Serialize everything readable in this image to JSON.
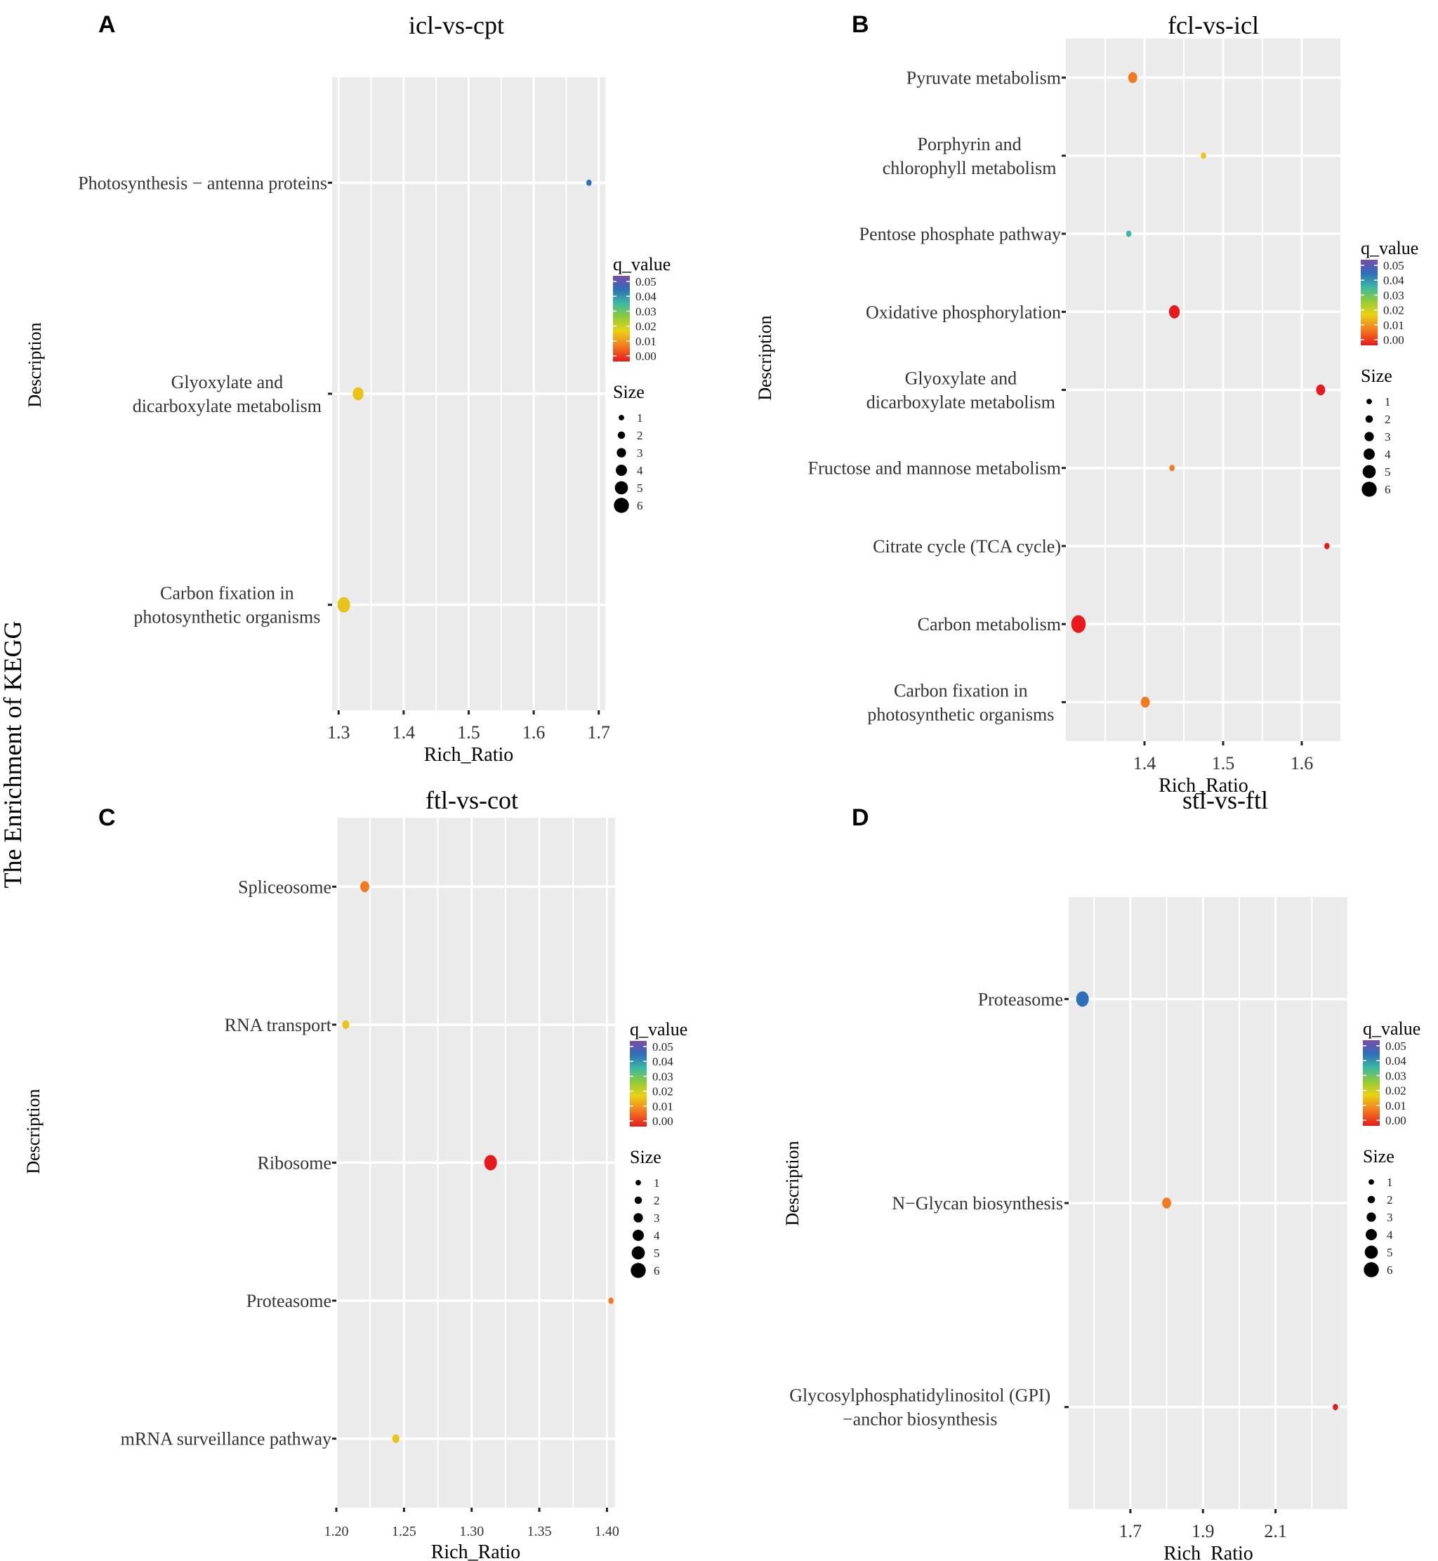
{
  "figure": {
    "global_ylabel": "The Enrichment of KEGG"
  },
  "chart_data": [
    {
      "type": "scatter",
      "panel": "A",
      "title": "icl-vs-cpt",
      "xlabel": "Rich_Ratio",
      "ylabel": "Description",
      "xlim": [
        1.29,
        1.71
      ],
      "xticks": [
        1.3,
        1.4,
        1.5,
        1.6,
        1.7
      ],
      "xtick_labels": [
        "1.3",
        "1.4",
        "1.5",
        "1.6",
        "1.7"
      ],
      "categories": [
        "Photosynthesis − antenna proteins",
        "Glyoxylate and\ndicarboxylate metabolism",
        "Carbon fixation in\nphotosynthetic organisms"
      ],
      "points": [
        {
          "category": 0,
          "x": 1.685,
          "q": 0.038,
          "size": 1
        },
        {
          "category": 1,
          "x": 1.33,
          "q": 0.016,
          "size": 4
        },
        {
          "category": 2,
          "x": 1.308,
          "q": 0.016,
          "size": 5
        }
      ],
      "legend": {
        "color_title": "q_value",
        "color_ticks": [
          "0.05",
          "0.04",
          "0.03",
          "0.02",
          "0.01",
          "0.00"
        ],
        "size_title": "Size",
        "size_ticks": [
          "1",
          "2",
          "3",
          "4",
          "5",
          "6"
        ],
        "position": "right"
      }
    },
    {
      "type": "scatter",
      "panel": "B",
      "title": "fcl-vs-icl",
      "xlabel": "Rich_Ratio",
      "ylabel": "Description",
      "xlim": [
        1.3,
        1.65
      ],
      "xticks": [
        1.4,
        1.5,
        1.6
      ],
      "xtick_labels": [
        "1.4",
        "1.5",
        "1.6"
      ],
      "categories": [
        "Pyruvate metabolism",
        "Porphyrin and\nchlorophyll metabolism",
        "Pentose phosphate pathway",
        "Oxidative phosphorylation",
        "Glyoxylate and\ndicarboxylate metabolism",
        "Fructose and mannose metabolism",
        "Citrate cycle (TCA cycle)",
        "Carbon metabolism",
        "Carbon fixation in\nphotosynthetic organisms"
      ],
      "points": [
        {
          "category": 0,
          "x": 1.385,
          "q": 0.006,
          "size": 3
        },
        {
          "category": 1,
          "x": 1.475,
          "q": 0.014,
          "size": 1
        },
        {
          "category": 2,
          "x": 1.38,
          "q": 0.032,
          "size": 1
        },
        {
          "category": 3,
          "x": 1.438,
          "q": 0.001,
          "size": 4
        },
        {
          "category": 4,
          "x": 1.624,
          "q": 0.001,
          "size": 3
        },
        {
          "category": 5,
          "x": 1.435,
          "q": 0.008,
          "size": 1
        },
        {
          "category": 6,
          "x": 1.632,
          "q": 0.001,
          "size": 1
        },
        {
          "category": 7,
          "x": 1.316,
          "q": 0.001,
          "size": 6
        },
        {
          "category": 8,
          "x": 1.401,
          "q": 0.005,
          "size": 3
        }
      ],
      "legend": {
        "color_title": "q_value",
        "color_ticks": [
          "0.05",
          "0.04",
          "0.03",
          "0.02",
          "0.01",
          "0.00"
        ],
        "size_title": "Size",
        "size_ticks": [
          "1",
          "2",
          "3",
          "4",
          "5",
          "6"
        ],
        "position": "right"
      }
    },
    {
      "type": "scatter",
      "panel": "C",
      "title": "ftl-vs-cot",
      "xlabel": "Rich_Ratio",
      "ylabel": "Description",
      "xlim": [
        1.2,
        1.406
      ],
      "xticks": [
        1.2,
        1.25,
        1.3,
        1.35,
        1.4
      ],
      "xtick_labels": [
        "1.20",
        "1.25",
        "1.30",
        "1.35",
        "1.40"
      ],
      "categories": [
        "Spliceosome",
        "RNA transport",
        "Ribosome",
        "Proteasome",
        "mRNA surveillance pathway"
      ],
      "points": [
        {
          "category": 0,
          "x": 1.221,
          "q": 0.006,
          "size": 3
        },
        {
          "category": 1,
          "x": 1.207,
          "q": 0.014,
          "size": 2
        },
        {
          "category": 2,
          "x": 1.314,
          "q": 0.001,
          "size": 5
        },
        {
          "category": 3,
          "x": 1.403,
          "q": 0.005,
          "size": 1
        },
        {
          "category": 4,
          "x": 1.244,
          "q": 0.013,
          "size": 2
        }
      ],
      "legend": {
        "color_title": "q_value",
        "color_ticks": [
          "0.05",
          "0.04",
          "0.03",
          "0.02",
          "0.01",
          "0.00"
        ],
        "size_title": "Size",
        "size_ticks": [
          "1",
          "2",
          "3",
          "4",
          "5",
          "6"
        ],
        "position": "right"
      }
    },
    {
      "type": "scatter",
      "panel": "D",
      "title": "stl-vs-ftl",
      "xlabel": "Rich_Ratio",
      "ylabel": "Description",
      "xlim": [
        1.53,
        2.3
      ],
      "xticks": [
        1.7,
        1.9,
        2.1
      ],
      "xtick_labels": [
        "1.7",
        "1.9",
        "2.1"
      ],
      "categories": [
        "Proteasome",
        "N−Glycan biosynthesis",
        "Glycosylphosphatidylinositol (GPI)\n−anchor biosynthesis"
      ],
      "points": [
        {
          "category": 0,
          "x": 1.568,
          "q": 0.039,
          "size": 5
        },
        {
          "category": 1,
          "x": 1.8,
          "q": 0.008,
          "size": 3
        },
        {
          "category": 2,
          "x": 2.265,
          "q": 0.001,
          "size": 1
        }
      ],
      "legend": {
        "color_title": "q_value",
        "color_ticks": [
          "0.05",
          "0.04",
          "0.03",
          "0.02",
          "0.01",
          "0.00"
        ],
        "size_title": "Size",
        "size_ticks": [
          "1",
          "2",
          "3",
          "4",
          "5",
          "6"
        ],
        "position": "right"
      }
    }
  ]
}
